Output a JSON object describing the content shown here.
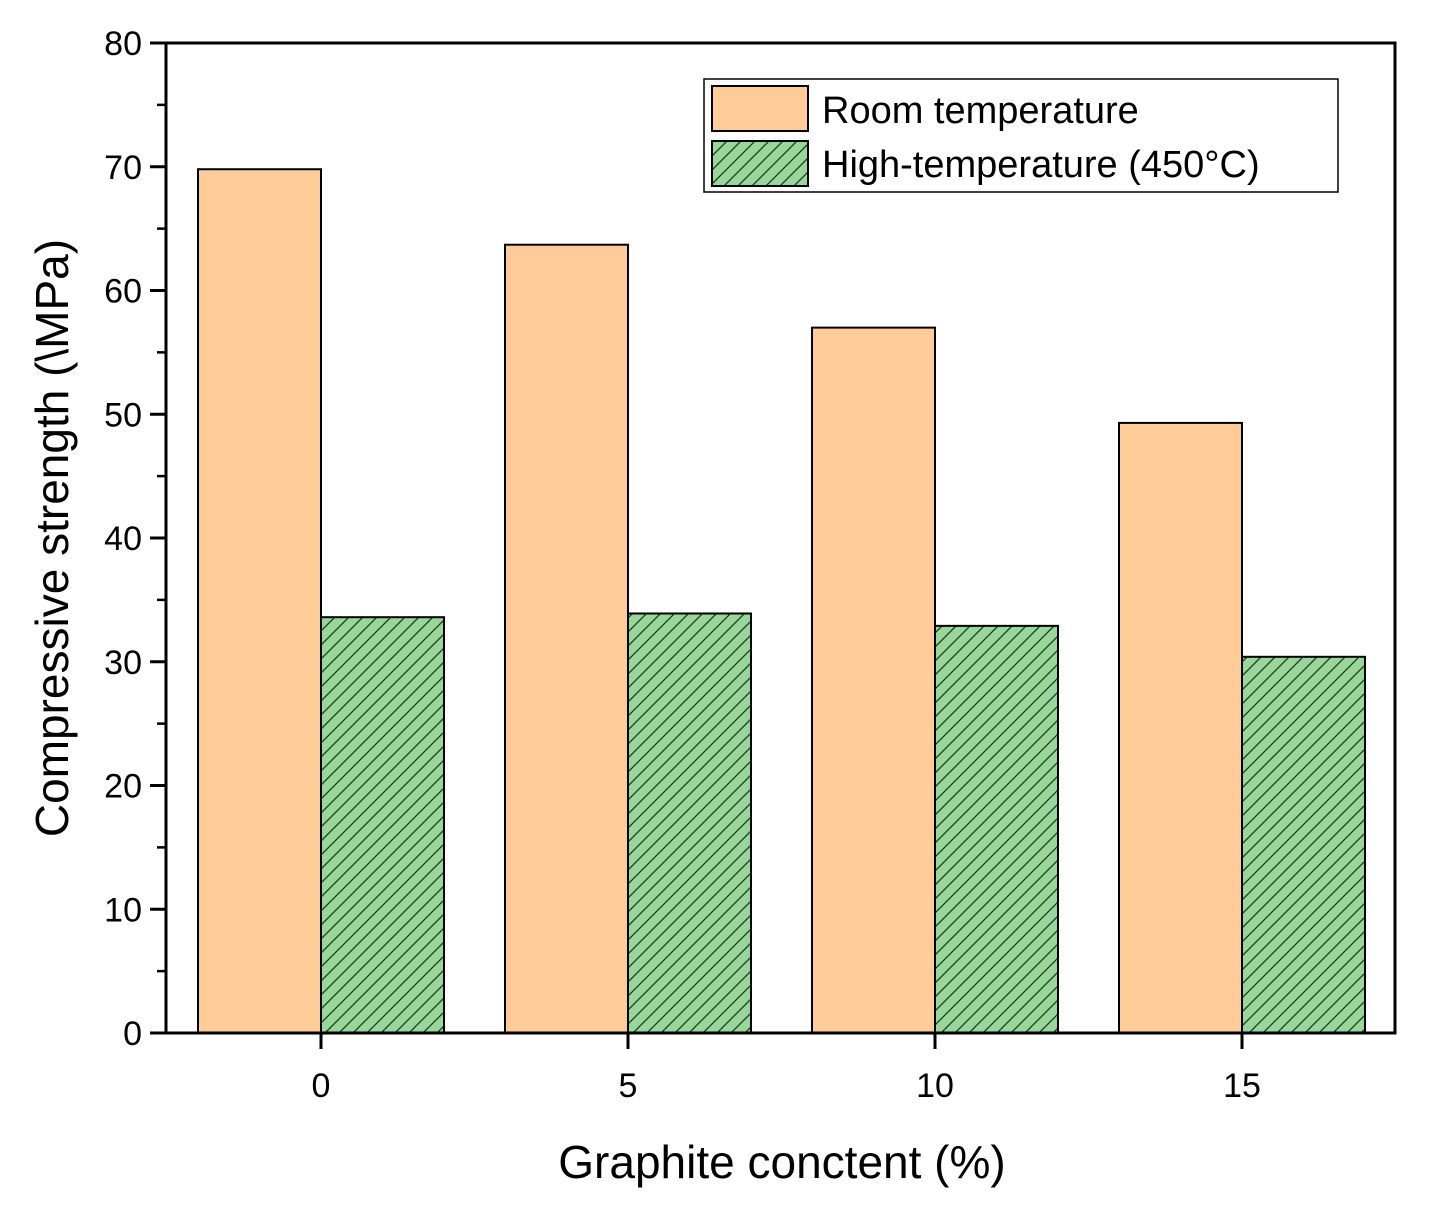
{
  "chart_data": {
    "type": "bar",
    "xlabel": "Graphite conctent (%)",
    "ylabel": "Compressive strength (\\MPa)",
    "categories": [
      "0",
      "5",
      "10",
      "15"
    ],
    "ylim": [
      0,
      80
    ],
    "yticks": [
      "0",
      "10",
      "20",
      "30",
      "40",
      "50",
      "60",
      "70",
      "80"
    ],
    "grid": false,
    "legend_position": "top-right",
    "series": [
      {
        "name": "Room temperature",
        "values": [
          69.8,
          63.7,
          57.0,
          49.3
        ],
        "color": "#FFCC99",
        "pattern": "solid"
      },
      {
        "name": "High-temperature (450°C)",
        "values": [
          33.6,
          33.9,
          32.9,
          30.4
        ],
        "color": "#99D699",
        "pattern": "diagonal-hatch"
      }
    ]
  }
}
